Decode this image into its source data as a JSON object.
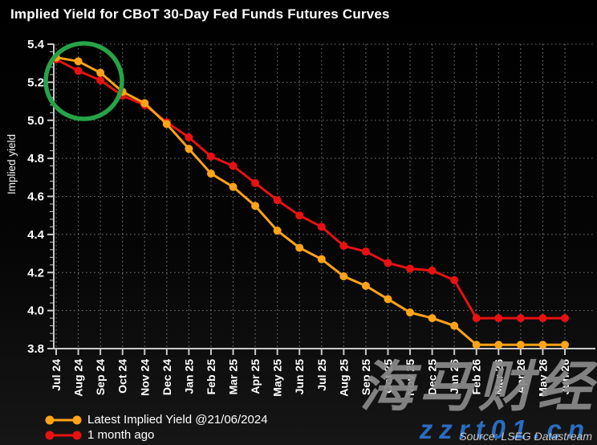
{
  "title": "Implied Yield for CBoT 30-Day Fed Funds Futures Curves",
  "source_note": "Source: LSEG Datastream",
  "watermark": {
    "cjk": "海马财经",
    "site": "zzrt01.cn"
  },
  "colors": {
    "background": "#000000",
    "text": "#ffffff",
    "grid": "#737373",
    "axis": "#c9c9c9",
    "watermark_gray": "#8a8a8a",
    "watermark_blue": "#2a6cc0"
  },
  "chart_data": {
    "type": "line",
    "title": "Implied Yield for CBoT 30-Day Fed Funds Futures Curves",
    "xlabel": "",
    "ylabel": "Implied yield",
    "ylim": [
      3.8,
      5.4
    ],
    "ytick_step": 0.2,
    "y_minor_step": 0.04,
    "grid": true,
    "legend_position": "bottom-left",
    "marker": "circle",
    "categories": [
      "Jul 24",
      "Aug 24",
      "Sep 24",
      "Oct 24",
      "Nov 24",
      "Dec 24",
      "Jan 25",
      "Feb 25",
      "Mar 25",
      "Apr 25",
      "May 25",
      "Jun 25",
      "Jul 25",
      "Aug 25",
      "Sep 25",
      "Oct 25",
      "Nov 25",
      "Dec 25",
      "Jan 26",
      "Feb 26",
      "Mar 26",
      "Apr 26",
      "May 26",
      "Jun 26"
    ],
    "series": [
      {
        "name": "Latest Implied Yield @21/06/2024",
        "color": "#ffa317",
        "values": [
          5.33,
          5.31,
          5.25,
          5.15,
          5.09,
          4.98,
          4.85,
          4.72,
          4.65,
          4.55,
          4.42,
          4.33,
          4.27,
          4.18,
          4.13,
          4.06,
          3.99,
          3.96,
          3.92,
          3.82,
          3.82,
          3.82,
          3.82,
          3.82
        ]
      },
      {
        "name": "1 month ago",
        "color": "#e81111",
        "values": [
          5.32,
          5.26,
          5.21,
          5.13,
          5.08,
          4.99,
          4.91,
          4.81,
          4.76,
          4.67,
          4.58,
          4.5,
          4.44,
          4.34,
          4.31,
          4.25,
          4.22,
          4.21,
          4.16,
          3.96,
          3.96,
          3.96,
          3.96,
          3.96
        ]
      }
    ],
    "annotation": {
      "shape": "circle-highlight",
      "color": "#27a347",
      "months_circled": [
        "Jul 24",
        "Aug 24",
        "Sep 24"
      ]
    }
  }
}
